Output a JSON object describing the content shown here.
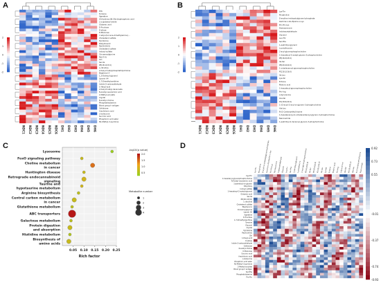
{
  "panels": {
    "a": {
      "label": "A"
    },
    "b": {
      "label": "B"
    },
    "c": {
      "label": "C"
    },
    "d": {
      "label": "D"
    }
  },
  "colors": {
    "high": "#d7191c",
    "mid": "#ffffff",
    "low": "#2c63c9",
    "corr_high": "#1f4f96",
    "corr_low": "#8f0b1b"
  },
  "heatmap_a": {
    "samples": [
      "NDC1",
      "NDC2",
      "NDC3",
      "NDC4",
      "NDC5",
      "NDC6",
      "DH1",
      "DH2",
      "DH3",
      "DH4",
      "DH5",
      "DH6"
    ],
    "legend_ticks": [
      "2",
      "1",
      "0",
      "-1",
      "-2"
    ],
    "rows": [
      "DIG",
      "Tyrosine",
      "Agmatine",
      "(S)-hydroxy-3β,20α-bisphosphonic acid",
      "L-α-glutamyl-amide",
      "Glutamic acid",
      "D-Fructose",
      "D-allose",
      "D-Mannose",
      "7-alkyl-(9-2-ene-dimethylamino)…",
      "Cholesterol sulfate",
      "Pyridoxine",
      "Dehydroacid",
      "Pa(20:0/0:0)",
      "Cholesterol sulfate",
      "Indoxyl sulfate",
      "Cinnamoylglycine",
      "Pe(17:0)",
      "Gln",
      "Ser-Ile",
      "PE(18:1/15:0)",
      "L-citrulline",
      "2-hexyl-3-alkylphosphatidylcholine",
      "Bisphenol A",
      "1,2-Dioleoyl-glycerol",
      "Lipoxin A4",
      "1,7-Dimethylxanthine",
      "Indole-3-carboxaldehyde",
      "1-Hexyl-acid",
      "2-hexyl-5-alkyl-decanoate",
      "N-Acetyl-neuraminic acid",
      "2-Methyl-acrylate",
      "Arg-Val",
      "N-acetyl-choline",
      "Phosphatidylserine",
      "Blood group h antigen",
      "Cellobiose",
      "Arachidonic acid",
      "L-Isoleucine",
      "Succinic acid",
      "Phosphoric acid ester",
      "N1-Methyl-2-pyridone"
    ]
  },
  "heatmap_b": {
    "samples": [
      "NDC1",
      "NDC2",
      "NDC3",
      "NDC4",
      "NDC5",
      "NDC6",
      "DH1",
      "DH2",
      "DH3",
      "DH4",
      "DH5",
      "DH6"
    ],
    "legend_ticks": [
      "2",
      "1",
      "0",
      "-1",
      "-2"
    ],
    "rows": [
      "Lys-Thr",
      "Morpholine",
      "D-erythro-imidazolylglycerol-phosphate",
      "Gamma-L-Glu-Epsilon-L-Lys",
      "Pro-Pro-Lys",
      "Damascenone",
      "Indoleacetaldehyde",
      "Glycerol",
      "Leu-Thr",
      "Ser-Phe",
      "1-palmitoyl-glycerol",
      "L-prolylleucine",
      "2-acyl-glycerophosphocholine",
      "1-hexadecyl-2-acetyl-glycero-3-phosphocholine",
      "PE(16:0/18:0)",
      "Ile-Ser",
      "PE(20:4/16:0)",
      "1-octadecenoyl-glycerophosphocholine",
      "PC(18:1/16:0)",
      "Ile-Leu",
      "Lys-Val",
      "Ectoine",
      "Malonic acid",
      "1-hexadecyl-glycerophosphocholine",
      "Pro-Arg",
      "L-Kynurenine",
      "Glu-Val",
      "PC(18:0/20:4)",
      "1-(O-acyl)-2-acyl-sn-glycero-3-phosphocholine",
      "Ala-Leu",
      "N-(1-Carboxyethyl)-lysine",
      "1-hexadecanoyl-2-octadecadienoyl-glycero-3-phosphocholine",
      "Niacinamide",
      "1-palmitoyl-2-decanoyl-glycero-3-phosphocholine"
    ]
  },
  "chart_data": [
    {
      "type": "scatter",
      "title": "",
      "xlabel": "Rich factor",
      "ylabel": "",
      "xlim": [
        0.0,
        0.25
      ],
      "x_ticks": [
        "0.05",
        "0.10",
        "0.15",
        "0.20",
        "0.25"
      ],
      "legend_pvalue": {
        "title": "-log10(p value)",
        "ticks": [
          "2.0",
          "1.5",
          "1.0",
          "0.5"
        ]
      },
      "legend_size": {
        "title": "Metabolite number",
        "values": [
          "1",
          "2",
          "3",
          "4"
        ]
      },
      "points": [
        {
          "pathway": "Lysosome",
          "rich_factor": 0.23,
          "neg_log10_p": 0.4,
          "metabolite_number": 1
        },
        {
          "pathway": "FoxO signaling pathway",
          "rich_factor": 0.09,
          "neg_log10_p": 0.9,
          "metabolite_number": 1
        },
        {
          "pathway": "Choline metabolism in cancer",
          "rich_factor": 0.14,
          "neg_log10_p": 1.6,
          "metabolite_number": 2
        },
        {
          "pathway": "Huntington disease",
          "rich_factor": 0.1,
          "neg_log10_p": 0.9,
          "metabolite_number": 1
        },
        {
          "pathway": "Retrograde endocannabinoid signaling",
          "rich_factor": 0.1,
          "neg_log10_p": 1.0,
          "metabolite_number": 2
        },
        {
          "pathway": "Taurine and hypotaurine metabolism",
          "rich_factor": 0.09,
          "neg_log10_p": 1.0,
          "metabolite_number": 1
        },
        {
          "pathway": "Arginine biosynthesis",
          "rich_factor": 0.075,
          "neg_log10_p": 0.8,
          "metabolite_number": 1
        },
        {
          "pathway": "Central carbon metabolism in cancer",
          "rich_factor": 0.055,
          "neg_log10_p": 0.9,
          "metabolite_number": 2
        },
        {
          "pathway": "Glutathione metabolism",
          "rich_factor": 0.045,
          "neg_log10_p": 0.8,
          "metabolite_number": 1
        },
        {
          "pathway": "ABC transporters",
          "rich_factor": 0.045,
          "neg_log10_p": 2.1,
          "metabolite_number": 4
        },
        {
          "pathway": "Galactose metabolism",
          "rich_factor": 0.04,
          "neg_log10_p": 0.8,
          "metabolite_number": 1
        },
        {
          "pathway": "Protein digestion and absorption",
          "rich_factor": 0.035,
          "neg_log10_p": 0.9,
          "metabolite_number": 2
        },
        {
          "pathway": "Histidine metabolism",
          "rich_factor": 0.035,
          "neg_log10_p": 0.7,
          "metabolite_number": 1
        },
        {
          "pathway": "Biosynthesis of amino acids",
          "rich_factor": 0.03,
          "neg_log10_p": 0.9,
          "metabolite_number": 2
        }
      ]
    },
    {
      "type": "heatmap",
      "legend_ticks": [
        "0.92",
        "0.73",
        "0.55",
        "0.37",
        "0.18",
        "-0.01",
        "-0.19",
        "-0.37",
        "-0.55",
        "-0.74",
        "-0.93"
      ],
      "col_labels": [
        "Lys-Thr",
        "Morpholine",
        "D-erythro-imidazolylglycerol-phosphate",
        "Gamma-L-Glu-Epsilon-L-Lys",
        "Pro-Pro-Lys",
        "Damascenone",
        "Indoleacetaldehyde",
        "Glycerol",
        "Leu-Thr",
        "Ser-Phe",
        "1-palmitoyl-glycerol",
        "L-prolylleucine",
        "2-acyl-glycerophosphocholine",
        "PE(16:0/18:0)",
        "Ile-Ser",
        "PE(20:4/16:0)",
        "PC(18:1/16:0)",
        "Ile-Leu",
        "Lys-Val",
        "Ectoine",
        "Malonic acid",
        "Pro-Arg",
        "L-Kynurenine",
        "Glu-Val",
        "PC(18:0/20:4)",
        "Ala-Leu",
        "N-(1-Carboxyethyl)-lysine",
        "Niacinamide"
      ],
      "row_labels": [
        "Cys-Thr",
        "1-hexadecyl-glycerophosphocholine",
        "N-Acetyl-neuraminic acid",
        "1-palmitoyl-sn-glycero",
        "Dihydroxy",
        "Indoxyl sulfate",
        "1-hexadecyl-2-acetyl-glycerol",
        "Glutamic acid",
        "Ser-Ile",
        "PE(18:1/15:0)",
        "L-citrulline",
        "Cholesterol sulfate",
        "Bisphenol A",
        "Cinnamoylglycine",
        "Lipoxin A4",
        "Agmatine",
        "D-Fructose",
        "1,7-Dimethylxanthine",
        "Tyrosine",
        "Glycerol",
        "Arg-Val",
        "Pyridoxine",
        "Pa(20:0/0:0)",
        "Gln",
        "1-Hexyl-acid",
        "D-allose",
        "Indole-3-carboxaldehyde",
        "Cellobiose",
        "N-acetyl-choline",
        "D-Mannose",
        "Succinic acid",
        "Arachidonic acid",
        "L-Isoleucine",
        "Phosphoric acid ester",
        "N1-Methyl-2-pyridone",
        "2-Methyl-acrylate",
        "Blood group h antigen",
        "Ser-Phe",
        "Phosphatidylserine",
        "Pro-Pro"
      ]
    }
  ]
}
